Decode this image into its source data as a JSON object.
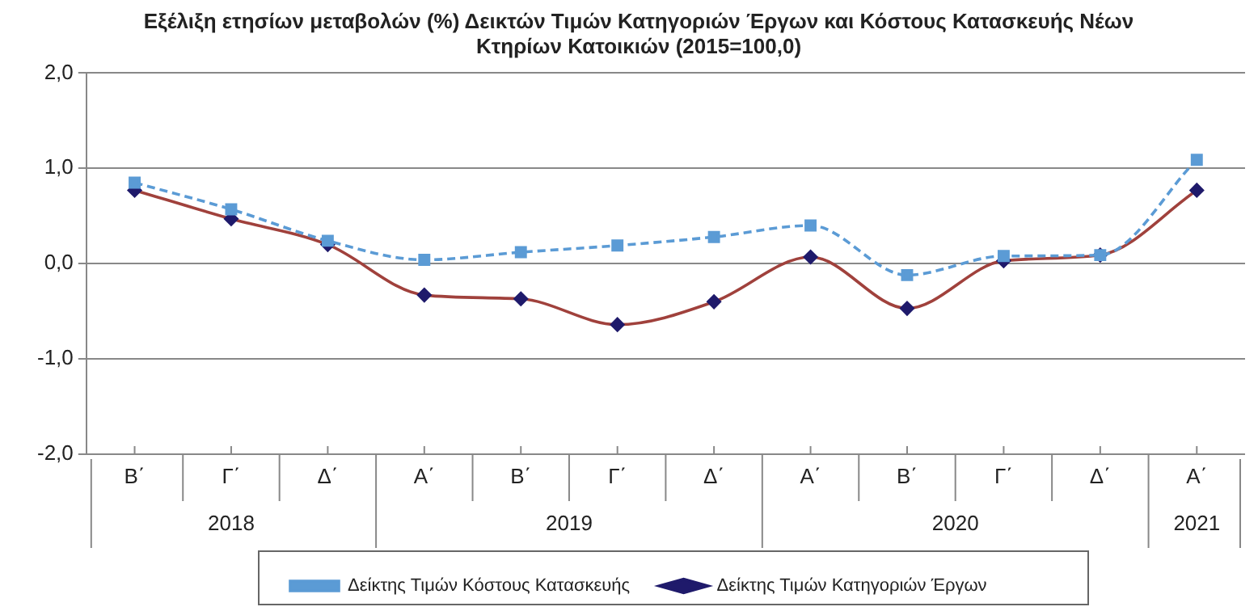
{
  "chart_data": {
    "type": "line",
    "title": "Εξέλιξη ετησίων μεταβολών (%) Δεικτών Τιμών Κατηγοριών Έργων και Κόστους Κατασκευής Νέων Κτηρίων Κατοικιών (2015=100,0)",
    "categories": [
      "Β΄",
      "Γ΄",
      "Δ΄",
      "Α΄",
      "Β΄",
      "Γ΄",
      "Δ΄",
      "Α΄",
      "Β΄",
      "Γ΄",
      "Δ΄",
      "Α΄"
    ],
    "annotations": [
      "2018",
      "2019",
      "2020",
      "2021"
    ],
    "series": [
      {
        "name": "Δείκτης Τιμών Κατηγοριών Έργων",
        "color": "#a0413c",
        "marker": "diamond",
        "line_style": "solid",
        "values": [
          0.77,
          0.47,
          0.2,
          -0.33,
          -0.37,
          -0.64,
          -0.4,
          0.07,
          -0.47,
          0.03,
          0.09,
          0.77
        ]
      },
      {
        "name": "Δείκτης Τιμών Κόστους Κατασκευής",
        "color": "#5b9bd5",
        "marker": "square",
        "line_style": "dashed",
        "values": [
          0.85,
          0.57,
          0.24,
          0.04,
          0.12,
          0.19,
          0.28,
          0.4,
          -0.12,
          0.08,
          0.09,
          1.09
        ]
      }
    ],
    "ylim": [
      -2,
      2
    ],
    "yticks": [
      {
        "value": -2,
        "label": "-2,0"
      },
      {
        "value": -1,
        "label": "-1,0"
      },
      {
        "value": 0,
        "label": "0,0"
      },
      {
        "value": 1,
        "label": "1,0"
      },
      {
        "value": 2,
        "label": "2,0"
      }
    ],
    "grid": "y",
    "legend": "bottom"
  }
}
